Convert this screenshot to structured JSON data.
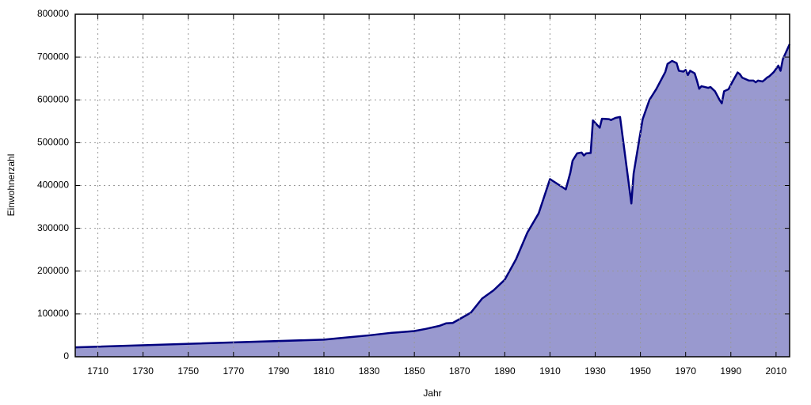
{
  "chart_data": {
    "type": "area",
    "x_label": "Jahr",
    "y_label": "Einwohnerzahl",
    "xlim": [
      1700,
      2016
    ],
    "ylim": [
      0,
      800000
    ],
    "xticks": [
      1710,
      1730,
      1750,
      1770,
      1790,
      1810,
      1830,
      1850,
      1870,
      1890,
      1910,
      1930,
      1950,
      1970,
      1990,
      2010
    ],
    "yticks": [
      0,
      100000,
      200000,
      300000,
      400000,
      500000,
      600000,
      700000,
      800000
    ],
    "grid": true,
    "series": [
      {
        "color": "#00007f",
        "fill": "#9999cf",
        "x": [
          1700,
          1810,
          1820,
          1830,
          1840,
          1843,
          1850,
          1855,
          1861,
          1864,
          1867,
          1875,
          1880,
          1885,
          1890,
          1895,
          1900,
          1905,
          1910,
          1917,
          1919,
          1920,
          1922,
          1924,
          1925,
          1926,
          1928,
          1929,
          1932,
          1933,
          1936,
          1937,
          1939,
          1941,
          1946,
          1947,
          1951,
          1954,
          1957,
          1961,
          1962,
          1964,
          1966,
          1967,
          1969,
          1970,
          1971,
          1972,
          1974,
          1975,
          1976,
          1977,
          1980,
          1981,
          1983,
          1985,
          1986,
          1987,
          1989,
          1991,
          1993,
          1994,
          1995,
          1998,
          2000,
          2001,
          2002,
          2004,
          2005,
          2006,
          2007,
          2009,
          2011,
          2012,
          2013,
          2016
        ],
        "values": [
          22000,
          40000,
          45000,
          50000,
          56000,
          57000,
          60000,
          65000,
          72000,
          78000,
          79000,
          103000,
          136000,
          155000,
          180000,
          228000,
          290000,
          335000,
          415000,
          391000,
          430000,
          458000,
          475000,
          477000,
          470000,
          475000,
          476000,
          552000,
          535000,
          556000,
          555000,
          553000,
          558000,
          560000,
          358000,
          428000,
          555000,
          600000,
          625000,
          665000,
          684000,
          691000,
          686000,
          668000,
          666000,
          670000,
          658000,
          668000,
          662000,
          645000,
          626000,
          632000,
          628000,
          630000,
          620000,
          600000,
          592000,
          620000,
          625000,
          645000,
          664000,
          660000,
          652000,
          645000,
          645000,
          641000,
          645000,
          643000,
          647000,
          652000,
          655000,
          665000,
          680000,
          668000,
          695000,
          730000
        ]
      }
    ]
  }
}
